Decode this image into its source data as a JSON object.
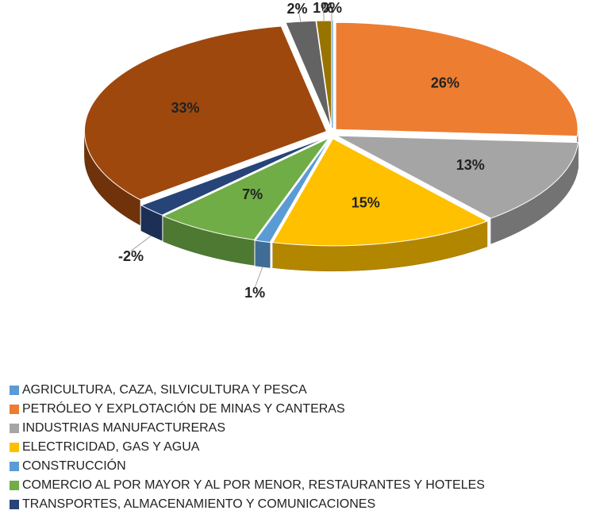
{
  "chart_data": {
    "type": "pie",
    "categories": [
      "AGRICULTURA, CAZA, SILVICULTURA Y PESCA",
      "PETRÓLEO Y EXPLOTACIÓN DE MINAS Y CANTERAS",
      "INDUSTRIAS MANUFACTURERAS",
      "ELECTRICIDAD, GAS Y AGUA",
      "CONSTRUCCIÓN",
      "COMERCIO AL POR MAYOR Y AL POR MENOR, RESTAURANTES Y HOTELES",
      "TRANSPORTES, ALMACENAMIENTO Y COMUNICACIONES",
      null,
      null,
      null
    ],
    "values": [
      0,
      26,
      13,
      15,
      1,
      7,
      -2,
      33,
      2,
      1
    ],
    "value_labels": [
      "0%",
      "26%",
      "13%",
      "15%",
      "1%",
      "7%",
      "-2%",
      "33%",
      "2%",
      "1%"
    ],
    "colors": [
      "#5b9bd5",
      "#ed7d31",
      "#a5a5a5",
      "#ffc000",
      "#5b9bd5",
      "#70ad47",
      "#264478",
      "#9e480e",
      "#636363",
      "#997300"
    ],
    "legend": "bottom"
  }
}
